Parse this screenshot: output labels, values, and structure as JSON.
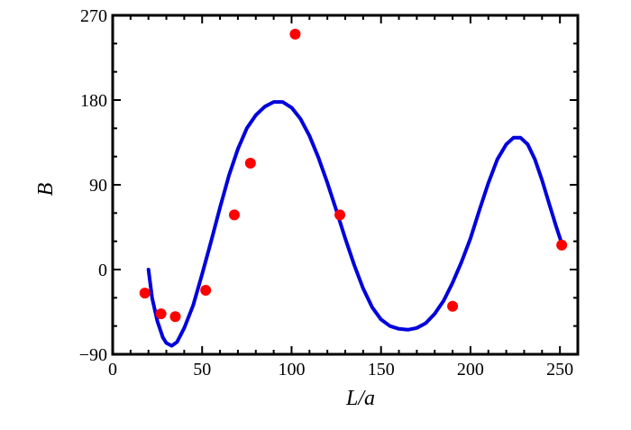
{
  "chart_data": {
    "type": "scatter",
    "xlabel": "L/a",
    "ylabel": "B",
    "xlim": [
      0,
      260
    ],
    "ylim": [
      -90,
      270
    ],
    "x_ticks": [
      0,
      50,
      100,
      150,
      200,
      250
    ],
    "y_ticks": [
      -90,
      0,
      90,
      180,
      270
    ],
    "x_tick_labels": [
      "0",
      "50",
      "100",
      "150",
      "200",
      "250"
    ],
    "y_tick_labels": [
      "−90",
      "0",
      "90",
      "180",
      "270"
    ],
    "grid": false,
    "legend": "none",
    "series": [
      {
        "kind": "scatter",
        "color": "#ff0000",
        "points": [
          [
            18,
            -25
          ],
          [
            27,
            -47
          ],
          [
            35,
            -50
          ],
          [
            52,
            -22
          ],
          [
            68,
            58
          ],
          [
            77,
            113
          ],
          [
            102,
            250
          ],
          [
            127,
            58
          ],
          [
            190,
            -39
          ],
          [
            251,
            26
          ]
        ]
      },
      {
        "kind": "line",
        "color": "#0000dd",
        "points": [
          [
            20,
            0
          ],
          [
            22,
            -30
          ],
          [
            25,
            -55
          ],
          [
            28,
            -72
          ],
          [
            30,
            -78
          ],
          [
            33,
            -81
          ],
          [
            36,
            -77
          ],
          [
            40,
            -62
          ],
          [
            45,
            -38
          ],
          [
            50,
            -5
          ],
          [
            55,
            30
          ],
          [
            60,
            66
          ],
          [
            65,
            100
          ],
          [
            70,
            128
          ],
          [
            75,
            150
          ],
          [
            80,
            164
          ],
          [
            85,
            173
          ],
          [
            90,
            178
          ],
          [
            95,
            178
          ],
          [
            100,
            172
          ],
          [
            105,
            160
          ],
          [
            110,
            142
          ],
          [
            115,
            119
          ],
          [
            120,
            92
          ],
          [
            125,
            63
          ],
          [
            130,
            33
          ],
          [
            135,
            5
          ],
          [
            140,
            -20
          ],
          [
            145,
            -40
          ],
          [
            150,
            -53
          ],
          [
            155,
            -60
          ],
          [
            160,
            -63
          ],
          [
            165,
            -64
          ],
          [
            170,
            -62
          ],
          [
            175,
            -57
          ],
          [
            180,
            -47
          ],
          [
            185,
            -33
          ],
          [
            190,
            -14
          ],
          [
            195,
            8
          ],
          [
            200,
            33
          ],
          [
            205,
            63
          ],
          [
            210,
            92
          ],
          [
            215,
            117
          ],
          [
            220,
            133
          ],
          [
            224,
            140
          ],
          [
            228,
            140
          ],
          [
            232,
            133
          ],
          [
            236,
            117
          ],
          [
            240,
            95
          ],
          [
            244,
            70
          ],
          [
            248,
            45
          ],
          [
            251,
            28
          ]
        ]
      }
    ]
  }
}
